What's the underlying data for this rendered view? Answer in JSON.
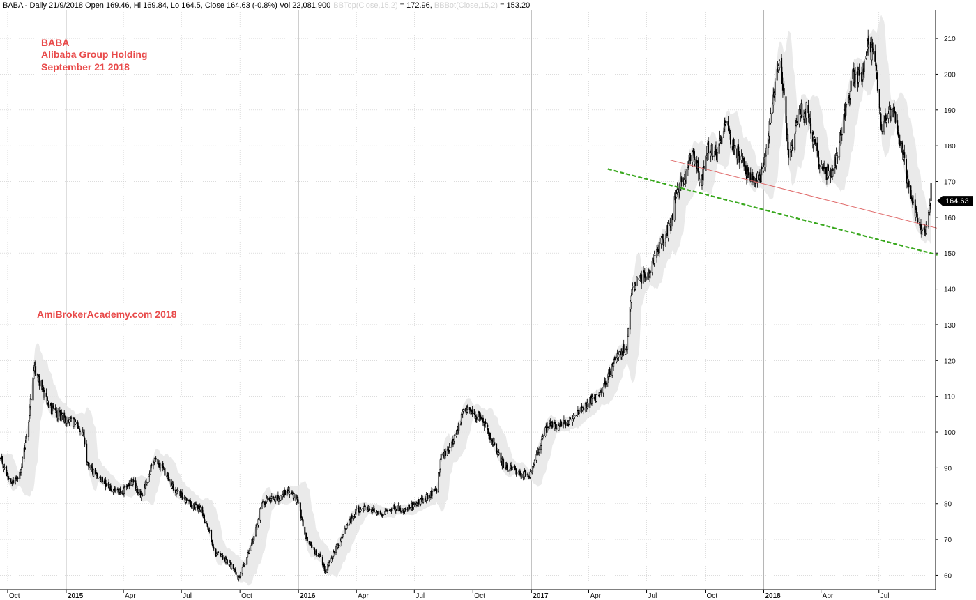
{
  "header": {
    "main": "BABA - Daily 21/9/2018 Open 169.46, Hi 169.84, Lo 164.5, Close 164.63 (-0.8%) Vol 22,081,900",
    "bbtop_label": "BBTop(Close,15,2)",
    "bbtop_value": " = 172.96, ",
    "bbbot_label": "BBBot(Close,15,2)",
    "bbbot_value": " = 153.20"
  },
  "annotations": {
    "ticker": "BABA",
    "company": "Alibaba Group Holding",
    "date": "September 21 2018",
    "watermark": "AmiBrokerAcademy.com  2018"
  },
  "price_tag": "164.63",
  "colors": {
    "annotation": "#e84a4a",
    "band": "#e6e6e6",
    "candle": "#000000",
    "support_line": "#39a81e",
    "resistance_line": "#e06a6a",
    "grid": "#c8c8c8",
    "header_faded": "#d2d2d2"
  },
  "chart_data": {
    "type": "candlestick",
    "title": "BABA - Daily",
    "ylim": [
      56,
      218
    ],
    "y_ticks": [
      60,
      70,
      80,
      90,
      100,
      110,
      120,
      130,
      140,
      150,
      160,
      170,
      180,
      190,
      200,
      210
    ],
    "grid": true,
    "x_range": [
      "2014-09-19",
      "2018-09-28"
    ],
    "x_ticks": [
      {
        "date": "2014-10-01",
        "label": "Oct",
        "bold": false
      },
      {
        "date": "2015-01-01",
        "label": "2015",
        "bold": true
      },
      {
        "date": "2015-04-01",
        "label": "Apr",
        "bold": false
      },
      {
        "date": "2015-07-01",
        "label": "Jul",
        "bold": false
      },
      {
        "date": "2015-10-01",
        "label": "Oct",
        "bold": false
      },
      {
        "date": "2016-01-01",
        "label": "2016",
        "bold": true
      },
      {
        "date": "2016-04-01",
        "label": "Apr",
        "bold": false
      },
      {
        "date": "2016-07-01",
        "label": "Jul",
        "bold": false
      },
      {
        "date": "2016-10-01",
        "label": "Oct",
        "bold": false
      },
      {
        "date": "2017-01-01",
        "label": "2017",
        "bold": true
      },
      {
        "date": "2017-04-01",
        "label": "Apr",
        "bold": false
      },
      {
        "date": "2017-07-01",
        "label": "Jul",
        "bold": false
      },
      {
        "date": "2017-10-01",
        "label": "Oct",
        "bold": false
      },
      {
        "date": "2018-01-01",
        "label": "2018",
        "bold": true
      },
      {
        "date": "2018-04-01",
        "label": "Apr",
        "bold": false
      },
      {
        "date": "2018-07-01",
        "label": "Jul",
        "bold": false
      }
    ],
    "bollinger": {
      "period": 15,
      "width": 2
    },
    "last": {
      "date": "2018-09-21",
      "open": 169.46,
      "high": 169.84,
      "low": 164.5,
      "close": 164.63,
      "volume": 22081900
    },
    "close_path": [
      [
        "2014-09-19",
        93
      ],
      [
        "2014-10-01",
        88
      ],
      [
        "2014-10-10",
        86
      ],
      [
        "2014-10-20",
        88
      ],
      [
        "2014-10-31",
        99
      ],
      [
        "2014-11-07",
        110
      ],
      [
        "2014-11-12",
        118
      ],
      [
        "2014-11-20",
        114
      ],
      [
        "2014-12-01",
        109
      ],
      [
        "2014-12-10",
        106
      ],
      [
        "2014-12-20",
        105
      ],
      [
        "2015-01-01",
        103
      ],
      [
        "2015-01-15",
        103
      ],
      [
        "2015-01-28",
        100
      ],
      [
        "2015-02-02",
        91
      ],
      [
        "2015-02-15",
        88
      ],
      [
        "2015-03-01",
        86
      ],
      [
        "2015-03-15",
        84
      ],
      [
        "2015-03-31",
        83
      ],
      [
        "2015-04-15",
        86
      ],
      [
        "2015-04-30",
        82
      ],
      [
        "2015-05-10",
        88
      ],
      [
        "2015-05-20",
        93
      ],
      [
        "2015-06-01",
        90
      ],
      [
        "2015-06-15",
        85
      ],
      [
        "2015-06-30",
        82
      ],
      [
        "2015-07-15",
        80
      ],
      [
        "2015-07-31",
        78
      ],
      [
        "2015-08-10",
        74
      ],
      [
        "2015-08-24",
        66
      ],
      [
        "2015-09-05",
        65
      ],
      [
        "2015-09-20",
        62
      ],
      [
        "2015-09-29",
        59
      ],
      [
        "2015-10-10",
        64
      ],
      [
        "2015-10-25",
        72
      ],
      [
        "2015-11-05",
        80
      ],
      [
        "2015-11-20",
        82
      ],
      [
        "2015-12-01",
        81
      ],
      [
        "2015-12-15",
        84
      ],
      [
        "2015-12-31",
        81
      ],
      [
        "2016-01-10",
        72
      ],
      [
        "2016-01-25",
        67
      ],
      [
        "2016-02-05",
        65
      ],
      [
        "2016-02-12",
        61
      ],
      [
        "2016-02-25",
        66
      ],
      [
        "2016-03-15",
        73
      ],
      [
        "2016-03-31",
        78
      ],
      [
        "2016-04-15",
        79
      ],
      [
        "2016-05-01",
        78
      ],
      [
        "2016-05-15",
        77
      ],
      [
        "2016-06-01",
        79
      ],
      [
        "2016-06-15",
        78
      ],
      [
        "2016-07-01",
        80
      ],
      [
        "2016-07-20",
        82
      ],
      [
        "2016-08-05",
        84
      ],
      [
        "2016-08-12",
        93
      ],
      [
        "2016-08-25",
        95
      ],
      [
        "2016-09-05",
        100
      ],
      [
        "2016-09-20",
        107
      ],
      [
        "2016-10-01",
        105
      ],
      [
        "2016-10-15",
        104
      ],
      [
        "2016-10-31",
        98
      ],
      [
        "2016-11-10",
        94
      ],
      [
        "2016-11-20",
        90
      ],
      [
        "2016-12-01",
        90
      ],
      [
        "2016-12-15",
        88
      ],
      [
        "2016-12-31",
        88
      ],
      [
        "2017-01-10",
        94
      ],
      [
        "2017-01-25",
        101
      ],
      [
        "2017-02-10",
        102
      ],
      [
        "2017-02-28",
        103
      ],
      [
        "2017-03-15",
        105
      ],
      [
        "2017-03-31",
        108
      ],
      [
        "2017-04-15",
        110
      ],
      [
        "2017-04-30",
        115
      ],
      [
        "2017-05-15",
        121
      ],
      [
        "2017-05-31",
        124
      ],
      [
        "2017-06-08",
        140
      ],
      [
        "2017-06-20",
        143
      ],
      [
        "2017-07-01",
        143
      ],
      [
        "2017-07-15",
        150
      ],
      [
        "2017-07-31",
        155
      ],
      [
        "2017-08-10",
        160
      ],
      [
        "2017-08-18",
        168
      ],
      [
        "2017-08-31",
        172
      ],
      [
        "2017-09-10",
        178
      ],
      [
        "2017-09-25",
        170
      ],
      [
        "2017-10-05",
        180
      ],
      [
        "2017-10-20",
        177
      ],
      [
        "2017-11-01",
        186
      ],
      [
        "2017-11-15",
        180
      ],
      [
        "2017-11-30",
        175
      ],
      [
        "2017-12-10",
        170
      ],
      [
        "2017-12-31",
        172
      ],
      [
        "2018-01-10",
        185
      ],
      [
        "2018-01-25",
        204
      ],
      [
        "2018-02-01",
        195
      ],
      [
        "2018-02-10",
        175
      ],
      [
        "2018-02-25",
        190
      ],
      [
        "2018-03-10",
        190
      ],
      [
        "2018-03-25",
        178
      ],
      [
        "2018-04-05",
        172
      ],
      [
        "2018-04-20",
        172
      ],
      [
        "2018-05-05",
        185
      ],
      [
        "2018-05-20",
        199
      ],
      [
        "2018-06-05",
        200
      ],
      [
        "2018-06-15",
        210
      ],
      [
        "2018-06-28",
        200
      ],
      [
        "2018-07-05",
        185
      ],
      [
        "2018-07-20",
        190
      ],
      [
        "2018-07-31",
        185
      ],
      [
        "2018-08-10",
        175
      ],
      [
        "2018-08-23",
        163
      ],
      [
        "2018-09-05",
        158
      ],
      [
        "2018-09-12",
        155
      ],
      [
        "2018-09-21",
        164.63
      ]
    ],
    "trendlines": [
      {
        "name": "support",
        "style": "dashed",
        "color": "#39a81e",
        "start": [
          "2017-05-01",
          173.5
        ],
        "end": [
          "2018-10-01",
          149.5
        ]
      },
      {
        "name": "resistance",
        "style": "solid",
        "color": "#e06a6a",
        "start": [
          "2017-08-07",
          176
        ],
        "end": [
          "2018-09-30",
          157
        ]
      }
    ]
  }
}
